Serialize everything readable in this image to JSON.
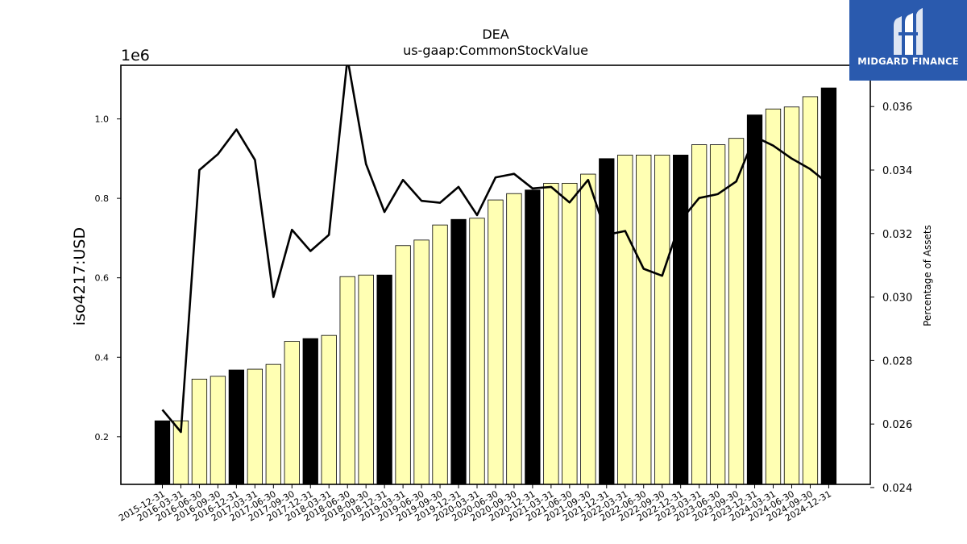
{
  "chart_data": {
    "type": "bar",
    "title": "DEA",
    "subtitle": "us-gaap:CommonStockValue",
    "ylabel": "iso4217:USD",
    "y_offset_label": "1e6",
    "y2label": "Percentage of Assets",
    "ylim": [
      0.08,
      1.135
    ],
    "y2lim": [
      0.0241,
      0.0373
    ],
    "yticks": [
      "0.2",
      "0.4",
      "0.6",
      "0.8",
      "1.0"
    ],
    "y2ticks": [
      "0.024",
      "0.026",
      "0.028",
      "0.030",
      "0.032",
      "0.034",
      "0.036"
    ],
    "categories": [
      "2015-12-31",
      "2016-03-31",
      "2016-06-30",
      "2016-09-30",
      "2016-12-31",
      "2017-03-31",
      "2017-06-30",
      "2017-09-30",
      "2017-12-31",
      "2018-03-31",
      "2018-06-30",
      "2018-09-30",
      "2018-12-31",
      "2019-03-31",
      "2019-06-30",
      "2019-09-30",
      "2019-12-31",
      "2020-03-31",
      "2020-06-30",
      "2020-09-30",
      "2020-12-31",
      "2021-03-31",
      "2021-06-30",
      "2021-09-30",
      "2021-12-31",
      "2022-03-31",
      "2022-06-30",
      "2022-09-30",
      "2022-12-31",
      "2023-03-31",
      "2023-06-30",
      "2023-09-30",
      "2023-12-31",
      "2024-03-31",
      "2024-06-30",
      "2024-09-30",
      "2024-12-31"
    ],
    "series": [
      {
        "kind": "bar",
        "values": [
          0.24,
          0.24,
          0.345,
          0.352,
          0.368,
          0.37,
          0.382,
          0.44,
          0.447,
          0.455,
          0.603,
          0.607,
          0.607,
          0.681,
          0.695,
          0.733,
          0.747,
          0.75,
          0.796,
          0.812,
          0.821,
          0.838,
          0.838,
          0.861,
          0.9,
          0.909,
          0.909,
          0.909,
          0.909,
          0.935,
          0.935,
          0.951,
          1.01,
          1.025,
          1.03,
          1.056,
          1.078
        ],
        "colors": {
          "annual": "#000000",
          "quarter": "#ffffb3",
          "edge": "#000000"
        }
      },
      {
        "kind": "line",
        "axis": "right",
        "color": "#000000",
        "values": [
          0.02645,
          0.02575,
          0.034,
          0.0345,
          0.03528,
          0.03432,
          0.03,
          0.03212,
          0.03145,
          0.03196,
          0.03752,
          0.03419,
          0.03268,
          0.03369,
          0.03303,
          0.03297,
          0.03347,
          0.03258,
          0.03377,
          0.03388,
          0.03342,
          0.03347,
          0.03298,
          0.03369,
          0.03196,
          0.03208,
          0.03089,
          0.03067,
          0.03241,
          0.03312,
          0.03324,
          0.03364,
          0.03505,
          0.03477,
          0.03436,
          0.03403,
          0.03356
        ]
      }
    ]
  },
  "logo": {
    "text": "MIDGARD FINANCE"
  }
}
